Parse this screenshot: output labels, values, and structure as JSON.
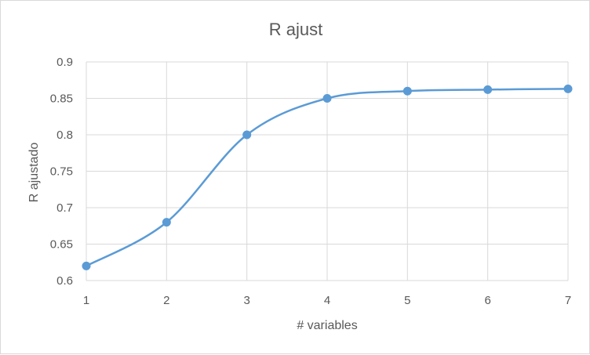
{
  "chart_data": {
    "type": "line",
    "title": "R ajust",
    "xlabel": "# variables",
    "ylabel": "R ajustado",
    "x": [
      1,
      2,
      3,
      4,
      5,
      6,
      7
    ],
    "xlim": [
      1,
      7
    ],
    "ylim": [
      0.6,
      0.9
    ],
    "x_ticks": [
      "1",
      "2",
      "3",
      "4",
      "5",
      "6",
      "7"
    ],
    "y_ticks": [
      "0.6",
      "0.65",
      "0.7",
      "0.75",
      "0.8",
      "0.85",
      "0.9"
    ],
    "y_tick_values": [
      0.6,
      0.65,
      0.7,
      0.75,
      0.8,
      0.85,
      0.9
    ],
    "grid": true,
    "smooth": true,
    "series": [
      {
        "values": [
          0.62,
          0.68,
          0.8,
          0.85,
          0.86,
          0.862,
          0.863
        ],
        "color": "#5b9bd5"
      }
    ]
  }
}
